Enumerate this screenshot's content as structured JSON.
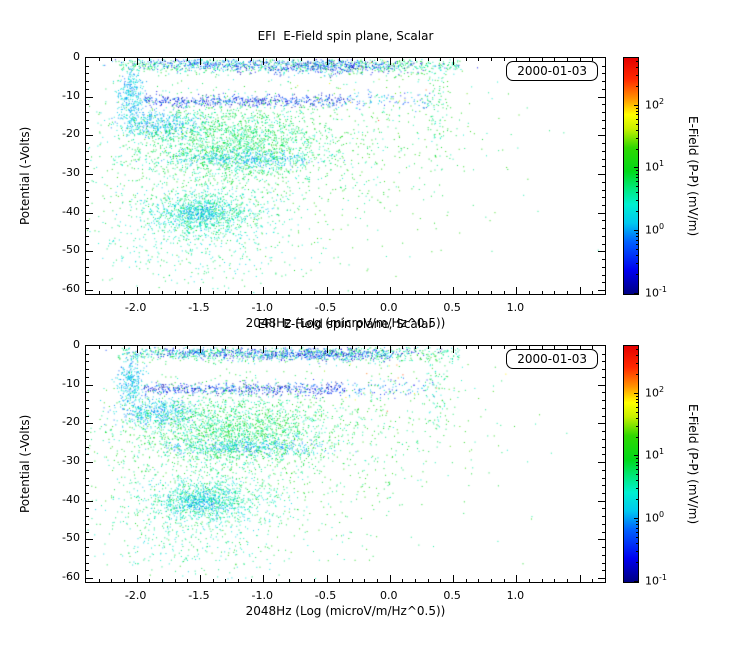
{
  "figure": {
    "background": "#ffffff"
  },
  "chart_data": [
    {
      "type": "scatter",
      "title": "EFI  E-Field spin plane, Scalar",
      "xlabel": "2048Hz (Log (microV/m/Hz^0.5))",
      "ylabel": "Potential (-Volts)",
      "legend": "2000-01-03",
      "xlim": [
        -2.4,
        1.7
      ],
      "ylim": [
        -61,
        0
      ],
      "xticks": [
        -2.0,
        -1.5,
        -1.0,
        -0.5,
        0.0,
        0.5,
        1.0
      ],
      "yticks": [
        0,
        -10,
        -20,
        -30,
        -40,
        -50,
        -60
      ],
      "x_minor_step": 0.1,
      "y_minor_step": 2,
      "colorbar": {
        "label": "E-Field (P-P) (mV/m)",
        "scale": "log",
        "tick_exponents": [
          2,
          1,
          0,
          -1
        ],
        "log_range": [
          -1,
          2.76
        ],
        "stops": [
          [
            0,
            "#000082"
          ],
          [
            0.1,
            "#0000f0"
          ],
          [
            0.22,
            "#0060ff"
          ],
          [
            0.3,
            "#00c8f0"
          ],
          [
            0.38,
            "#00f0d0"
          ],
          [
            0.45,
            "#00e878"
          ],
          [
            0.52,
            "#00d818"
          ],
          [
            0.62,
            "#30d800"
          ],
          [
            0.7,
            "#c8f000"
          ],
          [
            0.76,
            "#ffff00"
          ],
          [
            0.83,
            "#ff9000"
          ],
          [
            0.91,
            "#ff2800"
          ],
          [
            1,
            "#e40000"
          ]
        ]
      },
      "seed": 101,
      "cluster_format": "[count, xCenterOrMin, xSdOrMax, yCenter, ySd, log10Vmin, log10Vmax, xMode(0=gauss,1=uniform)]",
      "clusters": [
        [
          800,
          -2.15,
          0.55,
          -1.8,
          1.1,
          0.3,
          1.1,
          1
        ],
        [
          550,
          -0.6,
          0.4,
          -2.0,
          0.9,
          -1.0,
          0.2,
          0
        ],
        [
          200,
          -1.55,
          0.25,
          -1.5,
          0.7,
          -0.8,
          0.3,
          0
        ],
        [
          300,
          -2.05,
          0.05,
          -9.0,
          3.5,
          -0.2,
          0.5,
          0
        ],
        [
          550,
          -1.95,
          -0.35,
          -11.0,
          0.8,
          -1.0,
          0.1,
          1
        ],
        [
          90,
          -0.35,
          0.35,
          -11.0,
          1.2,
          -0.6,
          0.4,
          1
        ],
        [
          450,
          -1.85,
          0.17,
          -17.0,
          1.8,
          -0.2,
          0.5,
          0
        ],
        [
          2200,
          -1.25,
          0.42,
          -22.0,
          5.5,
          0.35,
          1.15,
          0
        ],
        [
          350,
          -1.15,
          0.3,
          -26.0,
          1.1,
          -0.2,
          0.4,
          0
        ],
        [
          1100,
          -1.45,
          0.26,
          -40.0,
          3.2,
          0.1,
          0.9,
          0
        ],
        [
          220,
          -1.5,
          0.1,
          -40.0,
          1.4,
          -0.2,
          0.4,
          0
        ],
        [
          800,
          -1.1,
          0.85,
          -30.0,
          13.0,
          0.5,
          1.3,
          0
        ],
        [
          220,
          0.0,
          0.45,
          -14.0,
          10.0,
          0.4,
          1.4,
          0
        ],
        [
          18,
          0.0,
          0.35,
          -8.0,
          6.0,
          1.4,
          2.4,
          0
        ],
        [
          260,
          -1.55,
          0.45,
          -51.0,
          4.5,
          0.2,
          0.9,
          0
        ],
        [
          80,
          0.38,
          0.05,
          -12.0,
          6.0,
          0.3,
          1.0,
          0
        ]
      ]
    },
    {
      "type": "scatter",
      "title": "EFI  E-Field spin plane, Scalar",
      "xlabel": "2048Hz (Log (microV/m/Hz^0.5))",
      "ylabel": "Potential (-Volts)",
      "legend": "2000-01-03",
      "xlim": [
        -2.4,
        1.7
      ],
      "ylim": [
        -61,
        0
      ],
      "xticks": [
        -2.0,
        -1.5,
        -1.0,
        -0.5,
        0.0,
        0.5,
        1.0
      ],
      "yticks": [
        0,
        -10,
        -20,
        -30,
        -40,
        -50,
        -60
      ],
      "x_minor_step": 0.1,
      "y_minor_step": 2,
      "colorbar": {
        "label": "E-Field (P-P) (mV/m)",
        "scale": "log",
        "tick_exponents": [
          2,
          1,
          0,
          -1
        ],
        "log_range": [
          -1,
          2.76
        ],
        "stops": [
          [
            0,
            "#000082"
          ],
          [
            0.1,
            "#0000f0"
          ],
          [
            0.22,
            "#0060ff"
          ],
          [
            0.3,
            "#00c8f0"
          ],
          [
            0.38,
            "#00f0d0"
          ],
          [
            0.45,
            "#00e878"
          ],
          [
            0.52,
            "#00d818"
          ],
          [
            0.62,
            "#30d800"
          ],
          [
            0.7,
            "#c8f000"
          ],
          [
            0.76,
            "#ffff00"
          ],
          [
            0.83,
            "#ff9000"
          ],
          [
            0.91,
            "#ff2800"
          ],
          [
            1,
            "#e40000"
          ]
        ]
      },
      "seed": 202,
      "cluster_format": "[count, xCenterOrMin, xSdOrMax, yCenter, ySd, log10Vmin, log10Vmax, xMode(0=gauss,1=uniform)]",
      "clusters": [
        [
          800,
          -2.15,
          0.55,
          -1.8,
          1.1,
          0.3,
          1.1,
          1
        ],
        [
          550,
          -0.6,
          0.4,
          -2.0,
          0.9,
          -1.0,
          0.2,
          0
        ],
        [
          200,
          -1.55,
          0.25,
          -1.5,
          0.7,
          -0.8,
          0.3,
          0
        ],
        [
          300,
          -2.05,
          0.05,
          -9.0,
          3.5,
          -0.2,
          0.5,
          0
        ],
        [
          550,
          -1.95,
          -0.35,
          -11.0,
          0.8,
          -1.0,
          0.1,
          1
        ],
        [
          90,
          -0.35,
          0.35,
          -11.0,
          1.2,
          -0.6,
          0.4,
          1
        ],
        [
          450,
          -1.85,
          0.17,
          -17.0,
          1.8,
          -0.2,
          0.5,
          0
        ],
        [
          2200,
          -1.25,
          0.42,
          -22.0,
          5.5,
          0.35,
          1.15,
          0
        ],
        [
          350,
          -1.15,
          0.3,
          -26.0,
          1.1,
          -0.2,
          0.4,
          0
        ],
        [
          1100,
          -1.45,
          0.26,
          -40.0,
          3.2,
          0.1,
          0.9,
          0
        ],
        [
          220,
          -1.5,
          0.1,
          -40.0,
          1.4,
          -0.2,
          0.4,
          0
        ],
        [
          800,
          -1.1,
          0.85,
          -30.0,
          13.0,
          0.5,
          1.3,
          0
        ],
        [
          220,
          0.0,
          0.45,
          -14.0,
          10.0,
          0.4,
          1.4,
          0
        ],
        [
          18,
          0.0,
          0.35,
          -8.0,
          6.0,
          1.4,
          2.4,
          0
        ],
        [
          260,
          -1.55,
          0.45,
          -51.0,
          4.5,
          0.2,
          0.9,
          0
        ],
        [
          80,
          0.38,
          0.05,
          -12.0,
          6.0,
          0.3,
          1.0,
          0
        ]
      ]
    }
  ]
}
